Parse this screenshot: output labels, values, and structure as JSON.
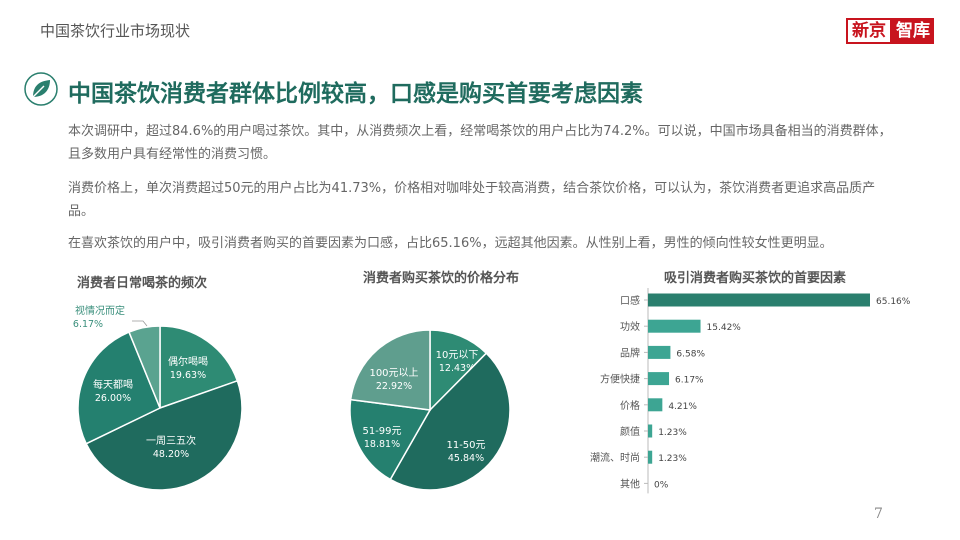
{
  "header": {
    "section_title": "中国茶饮行业市场现状",
    "logo_left": "新京",
    "logo_right": "智库"
  },
  "headline": "中国茶饮消费者群体比例较高，口感是购买首要考虑因素",
  "paragraphs": [
    "本次调研中，超过84.6%的用户喝过茶饮。其中，从消费频次上看，经常喝茶饮的用户占比为74.2%。可以说，中国市场具备相当的消费群体，且多数用户具有经常性的消费习惯。",
    "消费价格上，单次消费超过50元的用户占比为41.73%，价格相对咖啡处于较高消费，结合茶饮价格，可以认为，茶饮消费者更追求高品质产品。",
    "在喜欢茶饮的用户中，吸引消费者购买的首要因素为口感，占比65.16%，远超其他因素。从性别上看，男性的倾向性较女性更明显。"
  ],
  "page_number": "7",
  "chart_data": [
    {
      "type": "pie",
      "title": "消费者日常喝茶的频次",
      "slices": [
        {
          "label": "偶尔喝喝",
          "value": 19.63,
          "value_label": "19.63%",
          "color": "#2e8b74"
        },
        {
          "label": "一周三五次",
          "value": 48.2,
          "value_label": "48.20%",
          "color": "#1f6b5e"
        },
        {
          "label": "每天都喝",
          "value": 26.0,
          "value_label": "26.00%",
          "color": "#24806f"
        },
        {
          "label": "视情况而定",
          "value": 6.17,
          "value_label": "6.17%",
          "color": "#5aa390"
        }
      ]
    },
    {
      "type": "pie",
      "title": "消费者购买茶饮的价格分布",
      "slices": [
        {
          "label": "10元以下",
          "value": 12.43,
          "value_label": "12.43%",
          "color": "#2e8b74"
        },
        {
          "label": "11-50元",
          "value": 45.84,
          "value_label": "45.84%",
          "color": "#1f6b5e"
        },
        {
          "label": "51-99元",
          "value": 18.81,
          "value_label": "18.81%",
          "color": "#25806f"
        },
        {
          "label": "100元以上",
          "value": 22.92,
          "value_label": "22.92%",
          "color": "#5f9e8e"
        }
      ]
    },
    {
      "type": "bar",
      "orientation": "horizontal",
      "title": "吸引消费者购买茶饮的首要因素",
      "categories": [
        "口感",
        "功效",
        "品牌",
        "方便快捷",
        "价格",
        "颜值",
        "潮流、时尚",
        "其他"
      ],
      "values": [
        65.16,
        15.42,
        6.58,
        6.17,
        4.21,
        1.23,
        1.23,
        0
      ],
      "value_labels": [
        "65.16%",
        "15.42%",
        "6.58%",
        "6.17%",
        "4.21%",
        "1.23%",
        "1.23%",
        "0%"
      ],
      "colors": {
        "top": "#2a7f6e",
        "rest": "#3da593"
      }
    }
  ]
}
